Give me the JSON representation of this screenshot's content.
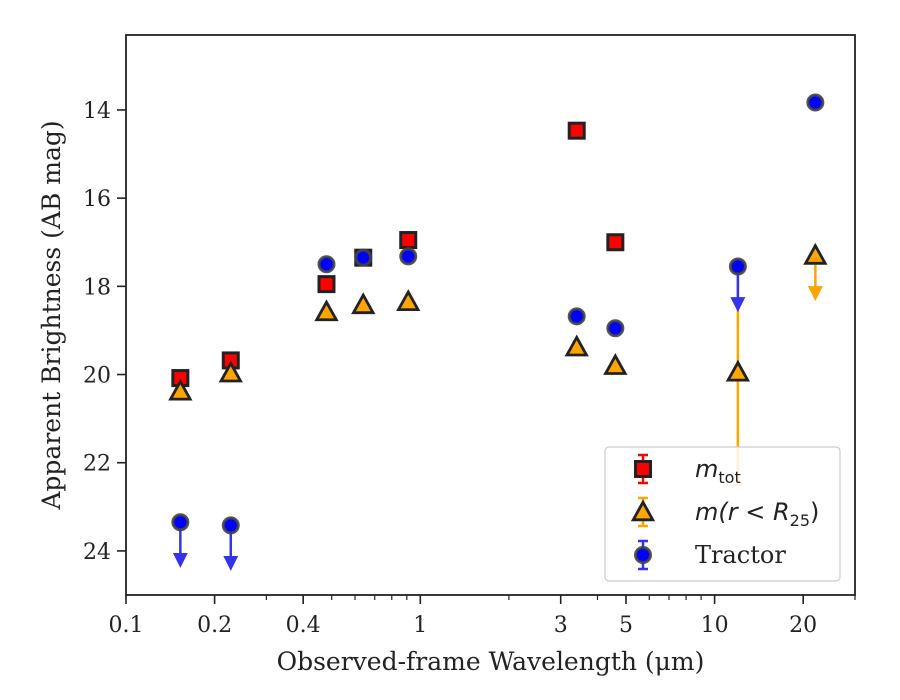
{
  "chart_data": {
    "type": "scatter",
    "xlabel": "Observed-frame Wavelength (μm)",
    "ylabel": "Apparent Brightness (AB mag)",
    "x_scale": "log",
    "xlim": [
      0.1,
      30
    ],
    "ylim": [
      25.0,
      12.3
    ],
    "y_inverted": true,
    "x_ticks": [
      0.1,
      0.2,
      0.4,
      1,
      3,
      5,
      10,
      20
    ],
    "x_tick_labels": [
      "0.1",
      "0.2",
      "0.4",
      "1",
      "3",
      "5",
      "10",
      "20"
    ],
    "y_ticks": [
      14,
      16,
      18,
      20,
      22,
      24
    ],
    "y_tick_labels": [
      "14",
      "16",
      "18",
      "20",
      "22",
      "24"
    ],
    "grid": false,
    "legend_position": "bottom-right",
    "series": [
      {
        "name": "m_tot",
        "legend_label": "m",
        "legend_sub": "tot",
        "marker": "square",
        "color": "#ff0000",
        "edge_color": "#222222",
        "points": [
          {
            "x": 0.153,
            "y": 20.08
          },
          {
            "x": 0.227,
            "y": 19.68
          },
          {
            "x": 0.48,
            "y": 17.95
          },
          {
            "x": 0.64,
            "y": 17.35
          },
          {
            "x": 0.91,
            "y": 16.95
          },
          {
            "x": 3.4,
            "y": 14.47
          },
          {
            "x": 4.6,
            "y": 17.0
          }
        ]
      },
      {
        "name": "m(r < R25)",
        "legend_label": "m(r < R",
        "legend_sub": "25",
        "legend_suffix": ")",
        "marker": "triangle",
        "color": "#ffa500",
        "edge_color": "#222222",
        "points": [
          {
            "x": 0.153,
            "y": 20.38
          },
          {
            "x": 0.227,
            "y": 19.97
          },
          {
            "x": 0.48,
            "y": 18.58
          },
          {
            "x": 0.64,
            "y": 18.42
          },
          {
            "x": 0.91,
            "y": 18.35
          },
          {
            "x": 3.4,
            "y": 19.38
          },
          {
            "x": 4.6,
            "y": 19.8
          },
          {
            "x": 12.0,
            "y": 19.95,
            "err_lo": 17.5,
            "err_hi": 22.5
          },
          {
            "x": 22.0,
            "y": 17.3,
            "upper_limit": true
          }
        ]
      },
      {
        "name": "Tractor",
        "legend_label": "Tractor",
        "marker": "circle",
        "color": "#0000ff",
        "edge_color": "#444444",
        "points": [
          {
            "x": 0.153,
            "y": 23.35,
            "upper_limit": true
          },
          {
            "x": 0.227,
            "y": 23.42,
            "upper_limit": true
          },
          {
            "x": 0.48,
            "y": 17.5
          },
          {
            "x": 0.64,
            "y": 17.35
          },
          {
            "x": 0.91,
            "y": 17.32
          },
          {
            "x": 3.4,
            "y": 18.68
          },
          {
            "x": 4.6,
            "y": 18.95
          },
          {
            "x": 12.0,
            "y": 17.55,
            "upper_limit": true
          },
          {
            "x": 22.0,
            "y": 13.83
          }
        ]
      }
    ]
  }
}
